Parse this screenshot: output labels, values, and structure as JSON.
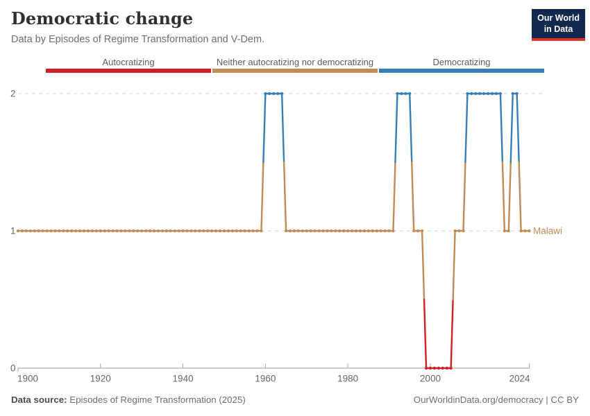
{
  "header": {
    "title": "Democratic change",
    "subtitle": "Data by Episodes of Regime Transformation and V-Dem.",
    "logo": {
      "line1": "Our World",
      "line2": "in Data"
    }
  },
  "legend": [
    {
      "label": "Autocratizing",
      "color": "#d21e26"
    },
    {
      "label": "Neither autocratizing nor democratizing",
      "color": "#bf8c54"
    },
    {
      "label": "Democratizing",
      "color": "#377eb8"
    }
  ],
  "chart_data": {
    "type": "line",
    "title": "Democratic change",
    "xlabel": "",
    "ylabel": "",
    "xlim": [
      1900,
      2024
    ],
    "ylim": [
      0,
      2
    ],
    "x_ticks": [
      1900,
      1920,
      1940,
      1960,
      1980,
      2000,
      2024
    ],
    "y_ticks": [
      0,
      1,
      2
    ],
    "grid": "dashed horizontal gridlines at y=1 and y=2, solid axis at y=0",
    "legend_position": "top",
    "value_colors": {
      "0": "#d21e26",
      "1": "#bf8c54",
      "2": "#377eb8"
    },
    "value_labels": {
      "0": "Autocratizing",
      "1": "Neither autocratizing nor democratizing",
      "2": "Democratizing"
    },
    "series": [
      {
        "name": "Malawi",
        "segments": [
          {
            "from": 1900,
            "to": 1959,
            "value": 1
          },
          {
            "from": 1960,
            "to": 1964,
            "value": 2
          },
          {
            "from": 1965,
            "to": 1991,
            "value": 1
          },
          {
            "from": 1992,
            "to": 1995,
            "value": 2
          },
          {
            "from": 1996,
            "to": 1998,
            "value": 1
          },
          {
            "from": 1999,
            "to": 2005,
            "value": 0
          },
          {
            "from": 2006,
            "to": 2008,
            "value": 1
          },
          {
            "from": 2009,
            "to": 2017,
            "value": 2
          },
          {
            "from": 2018,
            "to": 2019,
            "value": 1
          },
          {
            "from": 2020,
            "to": 2021,
            "value": 2
          },
          {
            "from": 2022,
            "to": 2024,
            "value": 1
          }
        ]
      }
    ]
  },
  "footer": {
    "source_label": "Data source:",
    "source_value": " Episodes of Regime Transformation (2025)",
    "right": "OurWorldinData.org/democracy | CC BY"
  }
}
